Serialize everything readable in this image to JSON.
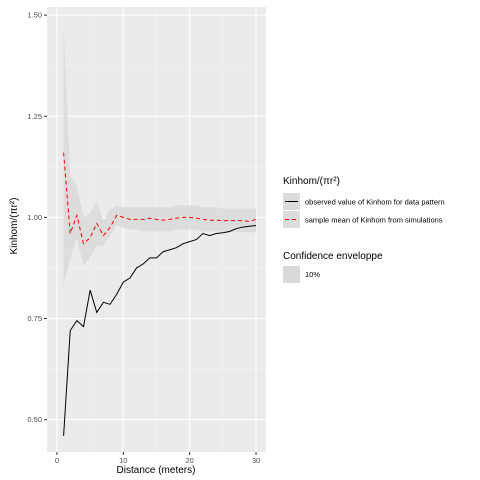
{
  "chart_data": {
    "type": "line",
    "xlabel": "Distance (meters)",
    "ylabel": "Kinhom/(πr²)",
    "xlim": [
      -1.5,
      31.5
    ],
    "ylim": [
      0.42,
      1.52
    ],
    "x_ticks": [
      0,
      10,
      20,
      30
    ],
    "y_ticks": [
      0.5,
      0.75,
      1.0,
      1.25,
      1.5
    ],
    "y_tick_labels": [
      "0.50",
      "0.75",
      "1.00",
      "1.25",
      "1.50"
    ],
    "x_tick_labels": [
      "0",
      "10",
      "20",
      "30"
    ],
    "grid": true,
    "legend_placement": "right",
    "series": [
      {
        "name": "observed value of Kinhom for data pattern",
        "line": "solid",
        "color": "#000000",
        "x": [
          1,
          2,
          3,
          4,
          5,
          6,
          7,
          8,
          9,
          10,
          11,
          12,
          13,
          14,
          15,
          16,
          17,
          18,
          19,
          20,
          21,
          22,
          23,
          24,
          25,
          26,
          27,
          28,
          29,
          30
        ],
        "y": [
          0.46,
          0.72,
          0.745,
          0.73,
          0.82,
          0.765,
          0.79,
          0.785,
          0.81,
          0.84,
          0.85,
          0.875,
          0.885,
          0.9,
          0.9,
          0.915,
          0.92,
          0.925,
          0.935,
          0.94,
          0.945,
          0.96,
          0.955,
          0.96,
          0.962,
          0.965,
          0.972,
          0.976,
          0.978,
          0.98
        ]
      },
      {
        "name": "sample mean of Kinhom from simulations",
        "line": "dashed",
        "color": "#ff0000",
        "x": [
          1,
          2,
          3,
          4,
          5,
          6,
          7,
          8,
          9,
          10,
          11,
          12,
          13,
          14,
          15,
          16,
          17,
          18,
          19,
          20,
          21,
          22,
          23,
          24,
          25,
          26,
          27,
          28,
          29,
          30
        ],
        "y": [
          1.16,
          0.96,
          1.005,
          0.935,
          0.95,
          0.985,
          0.955,
          0.975,
          1.005,
          1.0,
          0.995,
          0.995,
          0.995,
          0.998,
          0.995,
          0.993,
          0.995,
          0.998,
          1.0,
          1.0,
          0.998,
          0.995,
          0.993,
          0.993,
          0.992,
          0.992,
          0.992,
          0.992,
          0.99,
          0.995
        ]
      }
    ],
    "confidence_envelope": {
      "name": "10%",
      "color": "#d9d9d9",
      "x": [
        1,
        2,
        3,
        4,
        5,
        6,
        7,
        8,
        9,
        10,
        11,
        12,
        13,
        14,
        15,
        16,
        17,
        18,
        19,
        20,
        21,
        22,
        23,
        24,
        25,
        26,
        27,
        28,
        29,
        30
      ],
      "upper": [
        1.47,
        1.1,
        1.08,
        1.0,
        1.01,
        1.04,
        0.99,
        1.02,
        1.03,
        1.025,
        1.025,
        1.025,
        1.025,
        1.025,
        1.025,
        1.025,
        1.025,
        1.03,
        1.03,
        1.03,
        1.03,
        1.025,
        1.025,
        1.025,
        1.022,
        1.022,
        1.022,
        1.022,
        1.022,
        1.022
      ],
      "lower": [
        0.83,
        0.9,
        0.95,
        0.88,
        0.9,
        0.93,
        0.93,
        0.955,
        0.98,
        0.975,
        0.97,
        0.97,
        0.965,
        0.965,
        0.965,
        0.965,
        0.965,
        0.97,
        0.97,
        0.97,
        0.97,
        0.965,
        0.965,
        0.965,
        0.965,
        0.965,
        0.965,
        0.963,
        0.963,
        0.963
      ]
    },
    "legend": {
      "title": "Kinhom/(πr²)",
      "entries": [
        "observed value of Kinhom for data pattern",
        "sample mean of Kinhom from simulations"
      ],
      "envelope_title": "Confidence enveloppe",
      "envelope_entry": "10%"
    },
    "colors": {
      "panel_bg": "#ebebeb",
      "grid_major": "#ffffff",
      "observed": "#000000",
      "mean": "#ff0000",
      "envelope": "#d9d9d9"
    }
  }
}
